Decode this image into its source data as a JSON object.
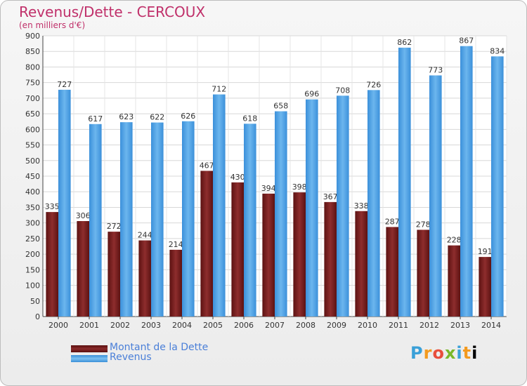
{
  "header": {
    "title": "Revenus/Dette - CERCOUX",
    "subtitle": "(en milliers d'€)"
  },
  "legend": {
    "position": "bottom-left",
    "items": [
      {
        "label": "Montant de la Dette",
        "color": "#7a1d1d"
      },
      {
        "label": "Revenus",
        "color": "#4ea4e6"
      }
    ]
  },
  "logo": {
    "text": "Proxiti"
  },
  "chart_data": {
    "type": "bar",
    "title": "Revenus/Dette - CERCOUX",
    "subtitle": "(en milliers d'€)",
    "categories": [
      "2000",
      "2001",
      "2002",
      "2003",
      "2004",
      "2005",
      "2006",
      "2007",
      "2008",
      "2009",
      "2010",
      "2011",
      "2012",
      "2013",
      "2014"
    ],
    "series": [
      {
        "name": "Montant de la Dette",
        "color": "#7a1d1d",
        "values": [
          335,
          306,
          272,
          244,
          214,
          467,
          430,
          394,
          398,
          367,
          338,
          287,
          278,
          228,
          191
        ]
      },
      {
        "name": "Revenus",
        "color": "#4ea4e6",
        "values": [
          727,
          617,
          623,
          622,
          626,
          712,
          618,
          658,
          696,
          708,
          726,
          862,
          773,
          867,
          834
        ]
      }
    ],
    "ylim": [
      0,
      900
    ],
    "yticks": [
      0,
      50,
      100,
      150,
      200,
      250,
      300,
      350,
      400,
      450,
      500,
      550,
      600,
      650,
      700,
      750,
      800,
      850,
      900
    ],
    "grid": true
  }
}
